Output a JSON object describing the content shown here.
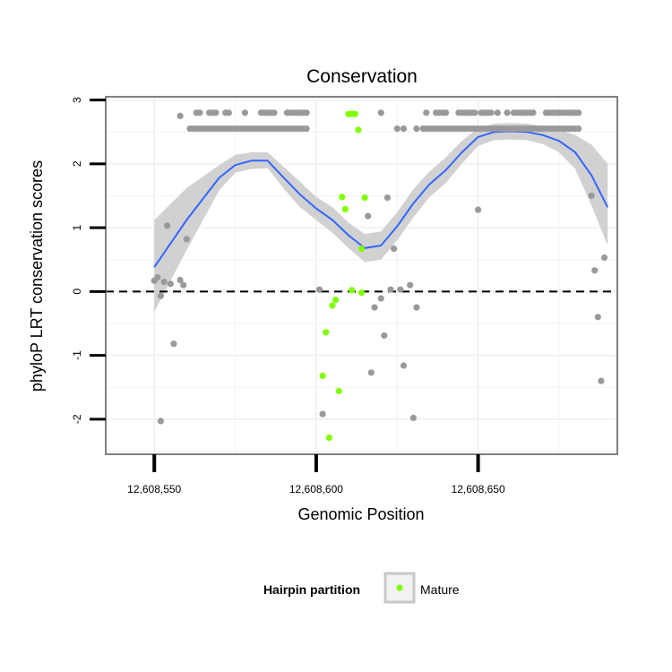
{
  "chart_data": {
    "type": "scatter",
    "title": "Conservation",
    "xlabel": "Genomic Position",
    "ylabel": "phyloP LRT conservation scores",
    "xlim": [
      12608535,
      12608693
    ],
    "ylim": [
      -2.55,
      3.05
    ],
    "x_ticks": [
      12608550,
      12608600,
      12608650
    ],
    "x_tick_labels": [
      "12,608,550",
      "12,608,600",
      "12,608,650"
    ],
    "y_ticks": [
      -2,
      -1,
      0,
      1,
      2,
      3
    ],
    "y_tick_labels": [
      "-2",
      "-1",
      "0",
      "1",
      "2",
      "3"
    ],
    "reference_line": {
      "y": 0,
      "style": "dashed"
    },
    "colors": {
      "other": "#999999",
      "mature": "#7FFF00",
      "smooth": "#3366FF",
      "ribbon": "#cccccc",
      "panel_border": "#808080",
      "grid": "#f2f2f2"
    },
    "legend": {
      "title": "Hairpin partition",
      "entries": [
        {
          "label": "Mature",
          "color": "#7FFF00"
        }
      ],
      "position": "bottom"
    },
    "series": [
      {
        "name": "Other",
        "points": [
          [
            12608561,
            2.55
          ],
          [
            12608562,
            2.55
          ],
          [
            12608563,
            2.55
          ],
          [
            12608564,
            2.55
          ],
          [
            12608565,
            2.55
          ],
          [
            12608566,
            2.55
          ],
          [
            12608567,
            2.55
          ],
          [
            12608568,
            2.55
          ],
          [
            12608569,
            2.55
          ],
          [
            12608570,
            2.55
          ],
          [
            12608571,
            2.55
          ],
          [
            12608572,
            2.55
          ],
          [
            12608573,
            2.55
          ],
          [
            12608574,
            2.55
          ],
          [
            12608575,
            2.55
          ],
          [
            12608576,
            2.55
          ],
          [
            12608577,
            2.55
          ],
          [
            12608578,
            2.55
          ],
          [
            12608579,
            2.55
          ],
          [
            12608580,
            2.55
          ],
          [
            12608581,
            2.55
          ],
          [
            12608582,
            2.55
          ],
          [
            12608583,
            2.55
          ],
          [
            12608584,
            2.55
          ],
          [
            12608585,
            2.55
          ],
          [
            12608586,
            2.55
          ],
          [
            12608587,
            2.55
          ],
          [
            12608588,
            2.55
          ],
          [
            12608589,
            2.55
          ],
          [
            12608590,
            2.55
          ],
          [
            12608591,
            2.55
          ],
          [
            12608592,
            2.55
          ],
          [
            12608593,
            2.55
          ],
          [
            12608594,
            2.55
          ],
          [
            12608595,
            2.55
          ],
          [
            12608596,
            2.55
          ],
          [
            12608597,
            2.55
          ],
          [
            12608625,
            2.55
          ],
          [
            12608627,
            2.55
          ],
          [
            12608631,
            2.55
          ],
          [
            12608633,
            2.55
          ],
          [
            12608634,
            2.55
          ],
          [
            12608635,
            2.55
          ],
          [
            12608636,
            2.55
          ],
          [
            12608637,
            2.55
          ],
          [
            12608638,
            2.55
          ],
          [
            12608639,
            2.55
          ],
          [
            12608640,
            2.55
          ],
          [
            12608641,
            2.55
          ],
          [
            12608642,
            2.55
          ],
          [
            12608643,
            2.55
          ],
          [
            12608644,
            2.55
          ],
          [
            12608645,
            2.55
          ],
          [
            12608646,
            2.55
          ],
          [
            12608647,
            2.55
          ],
          [
            12608648,
            2.55
          ],
          [
            12608649,
            2.55
          ],
          [
            12608650,
            2.55
          ],
          [
            12608651,
            2.55
          ],
          [
            12608652,
            2.55
          ],
          [
            12608653,
            2.55
          ],
          [
            12608654,
            2.55
          ],
          [
            12608655,
            2.55
          ],
          [
            12608656,
            2.55
          ],
          [
            12608657,
            2.55
          ],
          [
            12608658,
            2.55
          ],
          [
            12608659,
            2.55
          ],
          [
            12608660,
            2.55
          ],
          [
            12608661,
            2.55
          ],
          [
            12608662,
            2.55
          ],
          [
            12608663,
            2.55
          ],
          [
            12608664,
            2.55
          ],
          [
            12608665,
            2.55
          ],
          [
            12608666,
            2.55
          ],
          [
            12608667,
            2.55
          ],
          [
            12608668,
            2.55
          ],
          [
            12608669,
            2.55
          ],
          [
            12608670,
            2.55
          ],
          [
            12608671,
            2.55
          ],
          [
            12608672,
            2.55
          ],
          [
            12608673,
            2.55
          ],
          [
            12608674,
            2.55
          ],
          [
            12608675,
            2.55
          ],
          [
            12608676,
            2.55
          ],
          [
            12608677,
            2.55
          ],
          [
            12608678,
            2.55
          ],
          [
            12608679,
            2.55
          ],
          [
            12608680,
            2.55
          ],
          [
            12608681,
            2.55
          ],
          [
            12608558,
            2.75
          ],
          [
            12608563,
            2.8
          ],
          [
            12608564,
            2.8
          ],
          [
            12608567,
            2.8
          ],
          [
            12608568,
            2.8
          ],
          [
            12608569,
            2.8
          ],
          [
            12608572,
            2.8
          ],
          [
            12608573,
            2.8
          ],
          [
            12608578,
            2.8
          ],
          [
            12608583,
            2.8
          ],
          [
            12608584,
            2.8
          ],
          [
            12608585,
            2.8
          ],
          [
            12608586,
            2.8
          ],
          [
            12608587,
            2.8
          ],
          [
            12608591,
            2.8
          ],
          [
            12608592,
            2.8
          ],
          [
            12608593,
            2.8
          ],
          [
            12608594,
            2.8
          ],
          [
            12608595,
            2.8
          ],
          [
            12608596,
            2.8
          ],
          [
            12608597,
            2.8
          ],
          [
            12608620,
            2.8
          ],
          [
            12608634,
            2.8
          ],
          [
            12608637,
            2.8
          ],
          [
            12608638,
            2.8
          ],
          [
            12608639,
            2.8
          ],
          [
            12608640,
            2.8
          ],
          [
            12608644,
            2.8
          ],
          [
            12608645,
            2.8
          ],
          [
            12608646,
            2.8
          ],
          [
            12608647,
            2.8
          ],
          [
            12608648,
            2.8
          ],
          [
            12608649,
            2.8
          ],
          [
            12608651,
            2.8
          ],
          [
            12608652,
            2.8
          ],
          [
            12608653,
            2.8
          ],
          [
            12608654,
            2.8
          ],
          [
            12608656,
            2.8
          ],
          [
            12608659,
            2.8
          ],
          [
            12608661,
            2.8
          ],
          [
            12608662,
            2.8
          ],
          [
            12608663,
            2.8
          ],
          [
            12608664,
            2.8
          ],
          [
            12608665,
            2.8
          ],
          [
            12608666,
            2.8
          ],
          [
            12608667,
            2.8
          ],
          [
            12608671,
            2.8
          ],
          [
            12608672,
            2.8
          ],
          [
            12608673,
            2.8
          ],
          [
            12608674,
            2.8
          ],
          [
            12608675,
            2.8
          ],
          [
            12608676,
            2.8
          ],
          [
            12608677,
            2.8
          ],
          [
            12608678,
            2.8
          ],
          [
            12608679,
            2.8
          ],
          [
            12608680,
            2.8
          ],
          [
            12608681,
            2.8
          ],
          [
            12608550,
            0.17
          ],
          [
            12608551,
            0.22
          ],
          [
            12608552,
            -0.07
          ],
          [
            12608553,
            0.15
          ],
          [
            12608554,
            1.03
          ],
          [
            12608555,
            0.12
          ],
          [
            12608556,
            -0.82
          ],
          [
            12608558,
            0.18
          ],
          [
            12608559,
            0.1
          ],
          [
            12608560,
            0.82
          ],
          [
            12608552,
            -2.03
          ],
          [
            12608601,
            0.03
          ],
          [
            12608602,
            -1.92
          ],
          [
            12608616,
            1.18
          ],
          [
            12608617,
            -1.27
          ],
          [
            12608618,
            -0.25
          ],
          [
            12608620,
            -0.11
          ],
          [
            12608621,
            -0.69
          ],
          [
            12608622,
            1.47
          ],
          [
            12608623,
            0.03
          ],
          [
            12608624,
            0.67
          ],
          [
            12608626,
            0.03
          ],
          [
            12608627,
            -1.16
          ],
          [
            12608629,
            0.1
          ],
          [
            12608630,
            -1.98
          ],
          [
            12608631,
            -0.25
          ],
          [
            12608650,
            1.28
          ],
          [
            12608685,
            1.5
          ],
          [
            12608686,
            0.33
          ],
          [
            12608687,
            -0.4
          ],
          [
            12608688,
            -1.4
          ],
          [
            12608689,
            0.53
          ]
        ]
      },
      {
        "name": "Mature",
        "points": [
          [
            12608610,
            2.78
          ],
          [
            12608611,
            2.78
          ],
          [
            12608612,
            2.78
          ],
          [
            12608613,
            2.53
          ],
          [
            12608608,
            1.48
          ],
          [
            12608609,
            1.29
          ],
          [
            12608615,
            1.47
          ],
          [
            12608614,
            0.67
          ],
          [
            12608611,
            0.02
          ],
          [
            12608614,
            -0.02
          ],
          [
            12608605,
            -0.22
          ],
          [
            12608606,
            -0.13
          ],
          [
            12608603,
            -0.64
          ],
          [
            12608602,
            -1.32
          ],
          [
            12608607,
            -1.56
          ],
          [
            12608604,
            -2.29
          ]
        ]
      }
    ],
    "smooth": {
      "method": "loess",
      "x": [
        12608550,
        12608560,
        12608570,
        12608575,
        12608580,
        12608585,
        12608590,
        12608595,
        12608600,
        12608605,
        12608610,
        12608615,
        12608620,
        12608625,
        12608630,
        12608635,
        12608640,
        12608645,
        12608650,
        12608655,
        12608660,
        12608665,
        12608670,
        12608675,
        12608680,
        12608685,
        12608690
      ],
      "y": [
        0.38,
        1.12,
        1.78,
        1.98,
        2.05,
        2.05,
        1.78,
        1.52,
        1.3,
        1.12,
        0.88,
        0.68,
        0.72,
        1.02,
        1.38,
        1.68,
        1.9,
        2.18,
        2.42,
        2.5,
        2.51,
        2.5,
        2.45,
        2.36,
        2.18,
        1.82,
        1.32
      ],
      "ymin": [
        -0.32,
        0.65,
        1.58,
        1.86,
        1.92,
        1.93,
        1.61,
        1.32,
        1.12,
        0.92,
        0.68,
        0.46,
        0.5,
        0.8,
        1.16,
        1.48,
        1.7,
        2.0,
        2.28,
        2.37,
        2.38,
        2.37,
        2.31,
        2.18,
        1.92,
        1.35,
        0.72
      ],
      "ymax": [
        1.12,
        1.62,
        1.98,
        2.14,
        2.18,
        2.18,
        1.95,
        1.72,
        1.48,
        1.32,
        1.08,
        0.9,
        0.94,
        1.24,
        1.6,
        1.88,
        2.1,
        2.36,
        2.56,
        2.63,
        2.64,
        2.63,
        2.59,
        2.54,
        2.45,
        2.3,
        2.0
      ]
    }
  }
}
